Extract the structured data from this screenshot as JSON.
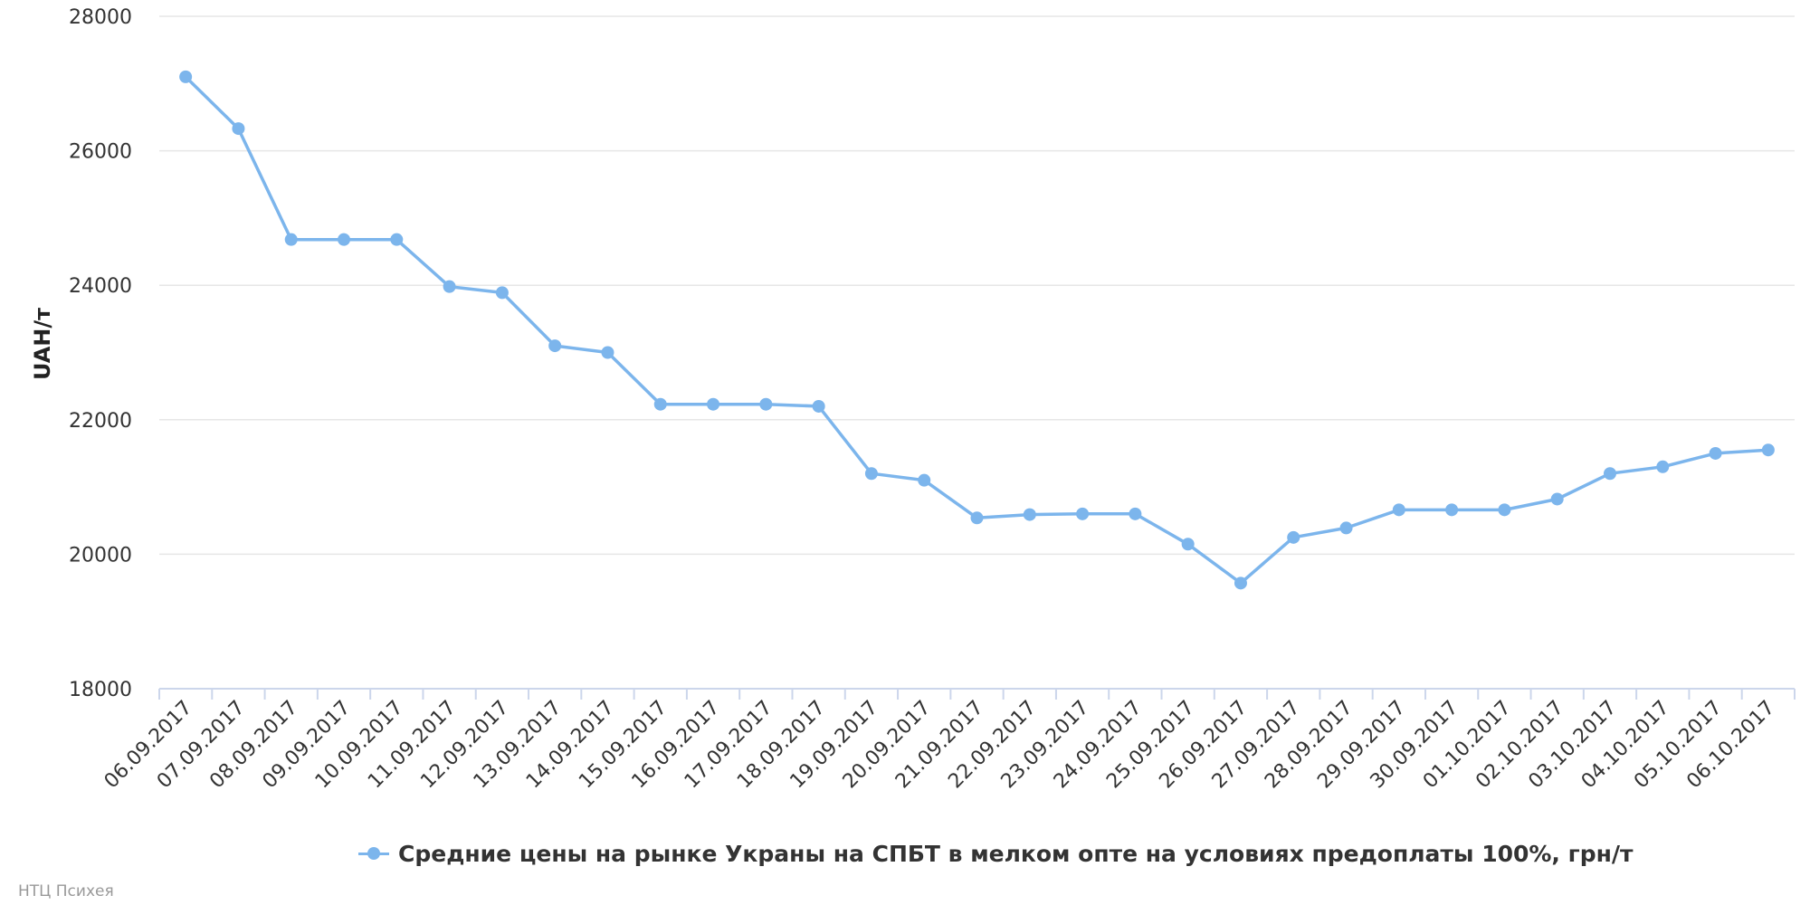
{
  "chart_data": {
    "type": "line",
    "title": "",
    "xlabel": "",
    "ylabel": "UAH/т",
    "ylim": [
      18000,
      28000
    ],
    "yticks": [
      18000,
      20000,
      22000,
      24000,
      26000,
      28000
    ],
    "grid": true,
    "legend_position": "bottom",
    "categories": [
      "06.09.2017",
      "07.09.2017",
      "08.09.2017",
      "09.09.2017",
      "10.09.2017",
      "11.09.2017",
      "12.09.2017",
      "13.09.2017",
      "14.09.2017",
      "15.09.2017",
      "16.09.2017",
      "17.09.2017",
      "18.09.2017",
      "19.09.2017",
      "20.09.2017",
      "21.09.2017",
      "22.09.2017",
      "23.09.2017",
      "24.09.2017",
      "25.09.2017",
      "26.09.2017",
      "27.09.2017",
      "28.09.2017",
      "29.09.2017",
      "30.09.2017",
      "01.10.2017",
      "02.10.2017",
      "03.10.2017",
      "04.10.2017",
      "05.10.2017",
      "06.10.2017"
    ],
    "series": [
      {
        "name": "Средние цены на рынке Украны на СПБТ в мелком опте на условиях предоплаты 100%, грн/т",
        "color": "#7cb5ec",
        "values": [
          27100,
          26330,
          24680,
          24680,
          24680,
          23980,
          23890,
          23100,
          23000,
          22230,
          22230,
          22230,
          22200,
          21200,
          21100,
          20540,
          20590,
          20600,
          20600,
          20150,
          19570,
          20250,
          20390,
          20660,
          20660,
          20660,
          20820,
          21200,
          21300,
          21500,
          21550
        ]
      }
    ]
  },
  "credits": "НТЦ Психея"
}
